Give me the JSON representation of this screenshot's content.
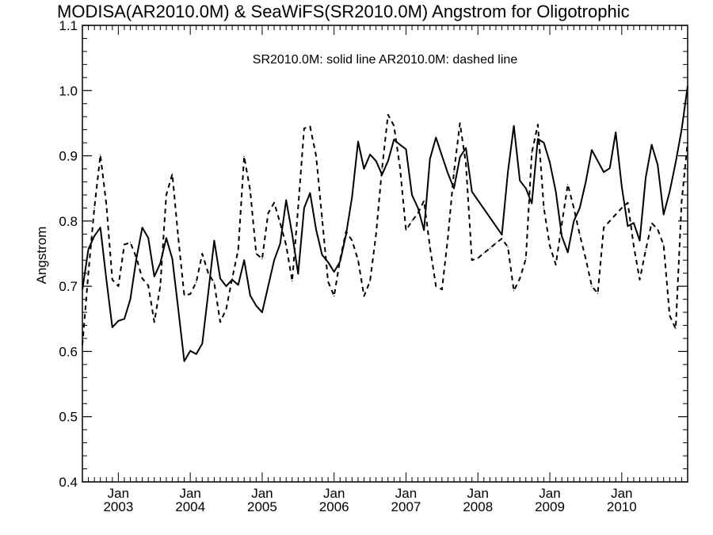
{
  "chart_data": {
    "type": "line",
    "title": "MODISA(AR2010.0M) & SeaWiFS(SR2010.0M)  Angstrom for Oligotrophic",
    "annotation": "SR2010.0M: solid line   AR2010.0M: dashed line",
    "xlabel": "",
    "ylabel": "Angstrom",
    "xlim": [
      "2002-07",
      "2010-12"
    ],
    "ylim": [
      0.4,
      1.1
    ],
    "yticks": [
      "0.4",
      "0.5",
      "0.6",
      "0.7",
      "0.8",
      "0.9",
      "1.0",
      "1.1"
    ],
    "xticks": [
      {
        "top": "Jan",
        "bottom": "2003",
        "date": "2003-01"
      },
      {
        "top": "Jan",
        "bottom": "2004",
        "date": "2004-01"
      },
      {
        "top": "Jan",
        "bottom": "2005",
        "date": "2005-01"
      },
      {
        "top": "Jan",
        "bottom": "2006",
        "date": "2006-01"
      },
      {
        "top": "Jan",
        "bottom": "2007",
        "date": "2007-01"
      },
      {
        "top": "Jan",
        "bottom": "2008",
        "date": "2008-01"
      },
      {
        "top": "Jan",
        "bottom": "2009",
        "date": "2009-01"
      },
      {
        "top": "Jan",
        "bottom": "2010",
        "date": "2010-01"
      }
    ],
    "grid": false,
    "series": [
      {
        "name": "SR2010.0M",
        "style": "solid",
        "color": "#000000",
        "x": [
          "2002-07",
          "2002-08",
          "2002-09",
          "2002-10",
          "2002-11",
          "2002-12",
          "2003-01",
          "2003-02",
          "2003-03",
          "2003-04",
          "2003-05",
          "2003-06",
          "2003-07",
          "2003-08",
          "2003-09",
          "2003-10",
          "2003-11",
          "2003-12",
          "2004-01",
          "2004-02",
          "2004-03",
          "2004-04",
          "2004-05",
          "2004-06",
          "2004-07",
          "2004-08",
          "2004-09",
          "2004-10",
          "2004-11",
          "2004-12",
          "2005-01",
          "2005-02",
          "2005-03",
          "2005-04",
          "2005-05",
          "2005-06",
          "2005-07",
          "2005-08",
          "2005-09",
          "2005-10",
          "2005-11",
          "2005-12",
          "2006-01",
          "2006-02",
          "2006-03",
          "2006-04",
          "2006-05",
          "2006-06",
          "2006-07",
          "2006-08",
          "2006-09",
          "2006-10",
          "2006-11",
          "2006-12",
          "2007-01",
          "2007-02",
          "2007-03",
          "2007-04",
          "2007-05",
          "2007-06",
          "2007-07",
          "2007-08",
          "2007-09",
          "2007-10",
          "2007-11",
          "2007-12",
          "2008-05",
          "2008-06",
          "2008-07",
          "2008-08",
          "2008-09",
          "2008-10",
          "2008-11",
          "2008-12",
          "2009-01",
          "2009-02",
          "2009-03",
          "2009-04",
          "2009-05",
          "2009-06",
          "2009-07",
          "2009-08",
          "2009-10",
          "2009-11",
          "2009-12",
          "2010-01",
          "2010-02",
          "2010-03",
          "2010-04",
          "2010-05",
          "2010-06",
          "2010-07",
          "2010-08",
          "2010-09",
          "2010-10",
          "2010-11",
          "2010-12"
        ],
        "values": [
          0.695,
          0.757,
          0.777,
          0.79,
          0.71,
          0.637,
          0.647,
          0.65,
          0.68,
          0.742,
          0.79,
          0.774,
          0.715,
          0.735,
          0.774,
          0.742,
          0.665,
          0.585,
          0.601,
          0.596,
          0.612,
          0.69,
          0.77,
          0.712,
          0.7,
          0.71,
          0.702,
          0.74,
          0.686,
          0.67,
          0.66,
          0.7,
          0.74,
          0.765,
          0.832,
          0.78,
          0.719,
          0.82,
          0.843,
          0.787,
          0.748,
          0.737,
          0.722,
          0.738,
          0.779,
          0.837,
          0.922,
          0.88,
          0.902,
          0.892,
          0.871,
          0.892,
          0.925,
          0.917,
          0.91,
          0.84,
          0.82,
          0.786,
          0.895,
          0.928,
          0.9,
          0.873,
          0.85,
          0.898,
          0.912,
          0.845,
          0.779,
          0.875,
          0.946,
          0.862,
          0.85,
          0.827,
          0.926,
          0.92,
          0.89,
          0.845,
          0.777,
          0.752,
          0.8,
          0.82,
          0.86,
          0.909,
          0.875,
          0.881,
          0.936,
          0.853,
          0.792,
          0.797,
          0.77,
          0.866,
          0.917,
          0.886,
          0.81,
          0.845,
          0.89,
          0.94,
          1.007
        ]
      },
      {
        "name": "AR2010.0M",
        "style": "dashed",
        "color": "#000000",
        "x": [
          "2002-07",
          "2002-08",
          "2002-09",
          "2002-10",
          "2002-11",
          "2002-12",
          "2003-01",
          "2003-02",
          "2003-03",
          "2003-04",
          "2003-05",
          "2003-06",
          "2003-07",
          "2003-08",
          "2003-09",
          "2003-10",
          "2003-11",
          "2003-12",
          "2004-01",
          "2004-02",
          "2004-03",
          "2004-04",
          "2004-05",
          "2004-06",
          "2004-07",
          "2004-08",
          "2004-09",
          "2004-10",
          "2004-11",
          "2004-12",
          "2005-01",
          "2005-02",
          "2005-03",
          "2005-04",
          "2005-05",
          "2005-06",
          "2005-07",
          "2005-08",
          "2005-09",
          "2005-10",
          "2005-11",
          "2005-12",
          "2006-01",
          "2006-02",
          "2006-03",
          "2006-04",
          "2006-05",
          "2006-06",
          "2006-07",
          "2006-08",
          "2006-09",
          "2006-10",
          "2006-11",
          "2006-12",
          "2007-01",
          "2007-02",
          "2007-03",
          "2007-04",
          "2007-05",
          "2007-06",
          "2007-07",
          "2007-08",
          "2007-09",
          "2007-10",
          "2007-11",
          "2007-12",
          "2008-01",
          "2008-02",
          "2008-03",
          "2008-04",
          "2008-05",
          "2008-06",
          "2008-07",
          "2008-08",
          "2008-09",
          "2008-10",
          "2008-11",
          "2008-12",
          "2009-01",
          "2009-02",
          "2009-03",
          "2009-04",
          "2009-05",
          "2009-06",
          "2009-07",
          "2009-08",
          "2009-09",
          "2009-10",
          "2009-11",
          "2009-12",
          "2010-01",
          "2010-02",
          "2010-03",
          "2010-04",
          "2010-05",
          "2010-06",
          "2010-07",
          "2010-08",
          "2010-09",
          "2010-10",
          "2010-11",
          "2010-12"
        ],
        "values": [
          0.61,
          0.721,
          0.82,
          0.901,
          0.825,
          0.71,
          0.7,
          0.764,
          0.767,
          0.744,
          0.712,
          0.701,
          0.645,
          0.7,
          0.84,
          0.872,
          0.775,
          0.686,
          0.688,
          0.706,
          0.75,
          0.72,
          0.705,
          0.645,
          0.665,
          0.712,
          0.756,
          0.899,
          0.847,
          0.75,
          0.742,
          0.812,
          0.828,
          0.797,
          0.763,
          0.708,
          0.82,
          0.942,
          0.945,
          0.9,
          0.804,
          0.707,
          0.685,
          0.741,
          0.784,
          0.77,
          0.74,
          0.685,
          0.708,
          0.78,
          0.88,
          0.963,
          0.946,
          0.882,
          0.786,
          0.8,
          0.812,
          0.831,
          0.76,
          0.7,
          0.695,
          0.775,
          0.875,
          0.95,
          0.888,
          0.74,
          0.743,
          0.751,
          0.758,
          0.766,
          0.773,
          0.76,
          0.693,
          0.712,
          0.742,
          0.905,
          0.948,
          0.82,
          0.762,
          0.733,
          0.795,
          0.856,
          0.82,
          0.779,
          0.742,
          0.7,
          0.689,
          0.79,
          0.8,
          0.81,
          0.82,
          0.828,
          0.762,
          0.71,
          0.755,
          0.797,
          0.787,
          0.763,
          0.655,
          0.635,
          0.83,
          0.921
        ]
      }
    ]
  }
}
